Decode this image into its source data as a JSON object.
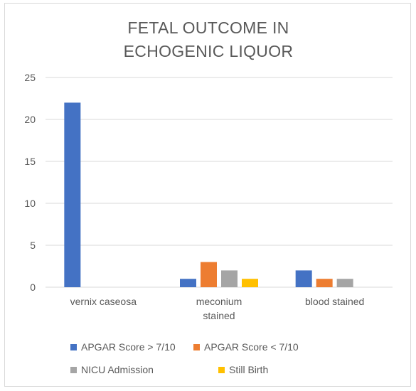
{
  "chart_data": {
    "type": "bar",
    "title": [
      "FETAL OUTCOME IN",
      "ECHOGENIC LIQUOR"
    ],
    "categories": [
      [
        "vernix caseosa"
      ],
      [
        "meconium",
        "stained"
      ],
      [
        "blood stained"
      ]
    ],
    "series": [
      {
        "name": "APGAR Score > 7/10",
        "color": "#4472c4",
        "values": [
          22,
          1,
          2
        ]
      },
      {
        "name": "APGAR Score < 7/10",
        "color": "#ed7d31",
        "values": [
          0,
          3,
          1
        ]
      },
      {
        "name": "NICU Admission",
        "color": "#a5a5a5",
        "values": [
          0,
          2,
          1
        ]
      },
      {
        "name": "Still Birth",
        "color": "#ffc000",
        "values": [
          0,
          1,
          0
        ]
      }
    ],
    "yticks": [
      "0",
      "5",
      "10",
      "15",
      "20",
      "25"
    ],
    "ylim": [
      0,
      25
    ],
    "grid": true,
    "legend_position": "bottom"
  }
}
